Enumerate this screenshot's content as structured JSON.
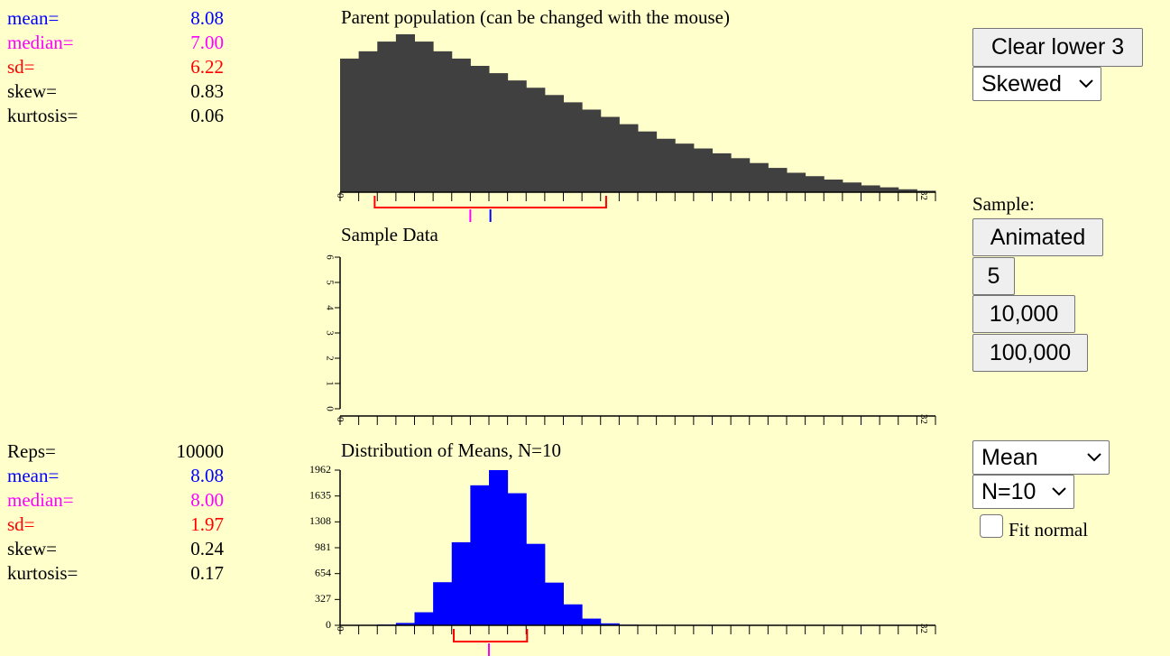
{
  "colors": {
    "mean": "#0000ff",
    "median": "#ff00ff",
    "sd": "#ff0000",
    "text": "#000000",
    "background": "#ffffcc",
    "parent_bars": "#404040",
    "means_bars": "#0000ff"
  },
  "top_stats": {
    "mean_label": "mean=",
    "mean_value": "8.08",
    "median_label": "median=",
    "median_value": "7.00",
    "sd_label": "sd=",
    "sd_value": "6.22",
    "skew_label": "skew=",
    "skew_value": "0.83",
    "kurtosis_label": "kurtosis=",
    "kurtosis_value": "0.06"
  },
  "bottom_stats": {
    "reps_label": "Reps=",
    "reps_value": "10000",
    "mean_label": "mean=",
    "mean_value": "8.08",
    "median_label": "median=",
    "median_value": "8.00",
    "sd_label": "sd=",
    "sd_value": "1.97",
    "skew_label": "skew=",
    "skew_value": "0.24",
    "kurtosis_label": "kurtosis=",
    "kurtosis_value": "0.17"
  },
  "controls": {
    "clear_lower_label": "Clear lower 3",
    "distribution_select": "Skewed",
    "sample_label": "Sample:",
    "animated_label": "Animated",
    "sample_5_label": "5",
    "sample_10000_label": "10,000",
    "sample_100000_label": "100,000",
    "statistic_select": "Mean",
    "n_select": "N=10",
    "fit_normal_label": "Fit normal",
    "fit_normal_checked": false
  },
  "chart_data": [
    {
      "type": "bar",
      "title": "Parent population (can be changed with the mouse)",
      "x_ticks": [
        "0",
        "32"
      ],
      "xlim": [
        0,
        32
      ],
      "values": [
        27.5,
        29,
        31,
        32.5,
        31,
        29,
        27.5,
        26,
        24.5,
        23,
        21.5,
        20,
        18.5,
        17,
        15.5,
        14,
        12.5,
        11,
        10,
        9,
        8,
        7,
        6,
        5,
        4,
        3.3,
        2.6,
        2,
        1.4,
        1,
        0.6,
        0.3
      ],
      "mean": 8.08,
      "median": 7.0,
      "sd": 6.22
    },
    {
      "type": "bar",
      "title": "Sample Data",
      "x_ticks": [
        "0",
        "32"
      ],
      "xlim": [
        0,
        32
      ],
      "y_ticks": [
        "0",
        "1",
        "2",
        "3",
        "4",
        "5",
        "6"
      ],
      "ylim": [
        0,
        6
      ],
      "values": []
    },
    {
      "type": "bar",
      "title": "Distribution of Means, N=10",
      "x_ticks": [
        "0",
        "32"
      ],
      "xlim": [
        0,
        32
      ],
      "y_ticks": [
        "0",
        "327",
        "654",
        "981",
        "1308",
        "1635",
        "1962"
      ],
      "ylim": [
        0,
        1962
      ],
      "values": [
        0,
        0,
        10,
        30,
        165,
        545,
        1050,
        1770,
        1962,
        1670,
        1030,
        540,
        265,
        85,
        25,
        8,
        5,
        3,
        2,
        0,
        0,
        0,
        0,
        0,
        0,
        0,
        0,
        0,
        0,
        0,
        0,
        0
      ],
      "mean": 8.08,
      "median": 8.0,
      "sd": 1.97
    }
  ]
}
